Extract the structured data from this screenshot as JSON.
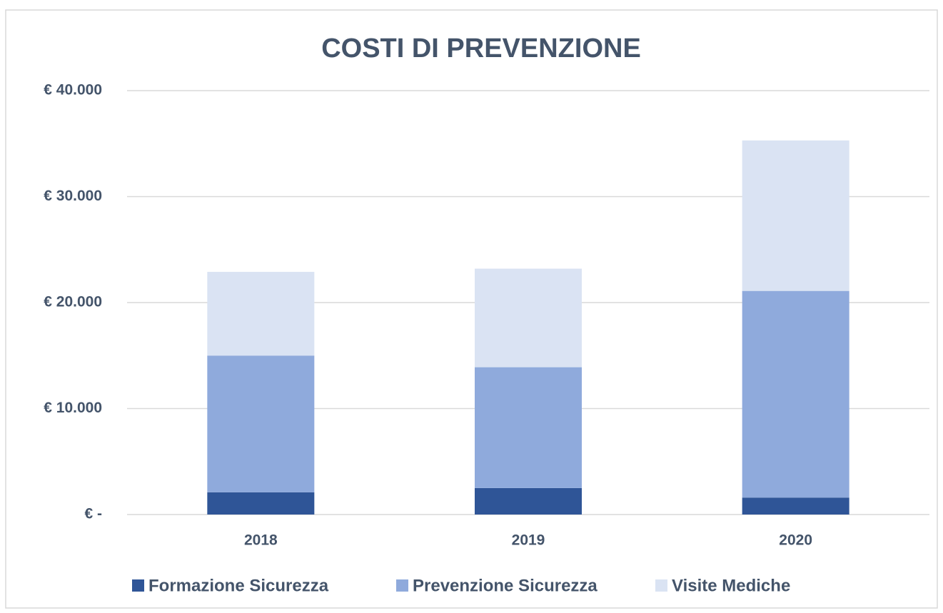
{
  "chart_data": {
    "type": "stacked_bar",
    "title": "COSTI DI PREVENZIONE",
    "categories": [
      "2018",
      "2019",
      "2020"
    ],
    "series": [
      {
        "name": "Formazione Sicurezza",
        "color": "#2f5597",
        "values": [
          2100,
          2500,
          1600
        ]
      },
      {
        "name": "Prevenzione Sicurezza",
        "color": "#8faadc",
        "values": [
          12900,
          11400,
          19500
        ]
      },
      {
        "name": "Visite Mediche",
        "color": "#dae3f3",
        "values": [
          7900,
          9300,
          14200
        ]
      }
    ],
    "ylim": [
      0,
      40000
    ],
    "yticks": [
      {
        "value": 0,
        "label": "€ -"
      },
      {
        "value": 10000,
        "label": "€ 10.000"
      },
      {
        "value": 20000,
        "label": "€ 20.000"
      },
      {
        "value": 30000,
        "label": "€ 30.000"
      },
      {
        "value": 40000,
        "label": "€ 40.000"
      }
    ],
    "grid": true,
    "legend": "bottom"
  }
}
